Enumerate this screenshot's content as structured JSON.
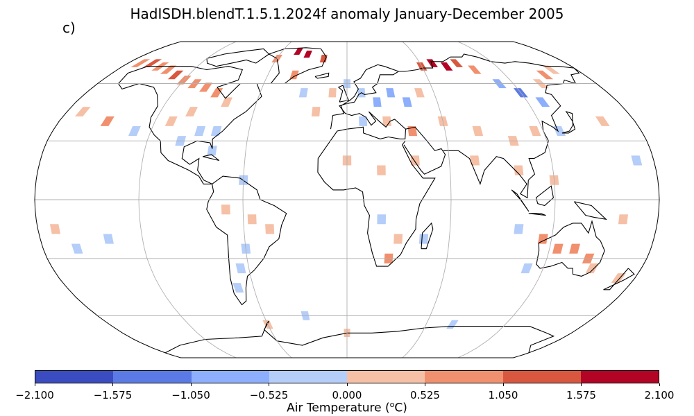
{
  "title": "HadISDH.blendT.1.5.1.2024f anomaly January-December 2005",
  "panel_label": "c)",
  "colorbar": {
    "label_prefix": "Air Temperature (",
    "label_sup": "o",
    "label_suffix": "C)",
    "ticks": [
      "−2.100",
      "−1.575",
      "−1.050",
      "−0.525",
      "0.000",
      "0.525",
      "1.050",
      "1.575",
      "2.100"
    ],
    "tick_values": [
      -2.1,
      -1.575,
      -1.05,
      -0.525,
      0.0,
      0.525,
      1.05,
      1.575,
      2.1
    ],
    "colors": [
      "#3b4cc0",
      "#5b7ae5",
      "#8caefc",
      "#b4cdf9",
      "#f5c0a6",
      "#f1906e",
      "#d9573f",
      "#b40426"
    ]
  },
  "map": {
    "projection": "Robinson",
    "gridlines": true,
    "anomaly_cells": [
      {
        "lon": -170,
        "lat": 72,
        "v": 0.8
      },
      {
        "lon": -160,
        "lat": 72,
        "v": 1.2
      },
      {
        "lon": -150,
        "lat": 70,
        "v": 0.6
      },
      {
        "lon": -140,
        "lat": 68,
        "v": 0.9
      },
      {
        "lon": -130,
        "lat": 65,
        "v": 1.1
      },
      {
        "lon": -120,
        "lat": 62,
        "v": 0.7
      },
      {
        "lon": -110,
        "lat": 60,
        "v": 1.0
      },
      {
        "lon": -100,
        "lat": 58,
        "v": 0.6
      },
      {
        "lon": -90,
        "lat": 55,
        "v": 0.8
      },
      {
        "lon": -80,
        "lat": 50,
        "v": 0.4
      },
      {
        "lon": -100,
        "lat": 45,
        "v": 0.5
      },
      {
        "lon": -110,
        "lat": 40,
        "v": 0.3
      },
      {
        "lon": -90,
        "lat": 35,
        "v": -0.3
      },
      {
        "lon": -80,
        "lat": 35,
        "v": -0.4
      },
      {
        "lon": -100,
        "lat": 30,
        "v": -0.2
      },
      {
        "lon": -80,
        "lat": 25,
        "v": -0.3
      },
      {
        "lon": -60,
        "lat": 75,
        "v": 0.9
      },
      {
        "lon": -45,
        "lat": 80,
        "v": 1.8
      },
      {
        "lon": -35,
        "lat": 78,
        "v": 2.0
      },
      {
        "lon": -20,
        "lat": 75,
        "v": 1.3
      },
      {
        "lon": -40,
        "lat": 65,
        "v": 0.7
      },
      {
        "lon": -30,
        "lat": 55,
        "v": -0.2
      },
      {
        "lon": -20,
        "lat": 45,
        "v": 0.3
      },
      {
        "lon": -10,
        "lat": 55,
        "v": 0.4
      },
      {
        "lon": 0,
        "lat": 60,
        "v": -0.3
      },
      {
        "lon": 10,
        "lat": 55,
        "v": -0.5
      },
      {
        "lon": 20,
        "lat": 50,
        "v": -0.7
      },
      {
        "lon": 30,
        "lat": 55,
        "v": -0.9
      },
      {
        "lon": 40,
        "lat": 50,
        "v": -0.6
      },
      {
        "lon": 50,
        "lat": 55,
        "v": 0.4
      },
      {
        "lon": 60,
        "lat": 70,
        "v": 1.4
      },
      {
        "lon": 70,
        "lat": 72,
        "v": 1.9
      },
      {
        "lon": 80,
        "lat": 70,
        "v": 1.7
      },
      {
        "lon": 90,
        "lat": 72,
        "v": 1.3
      },
      {
        "lon": 100,
        "lat": 68,
        "v": 0.9
      },
      {
        "lon": 110,
        "lat": 60,
        "v": -0.6
      },
      {
        "lon": 120,
        "lat": 55,
        "v": -1.1
      },
      {
        "lon": 130,
        "lat": 50,
        "v": -0.8
      },
      {
        "lon": 140,
        "lat": 60,
        "v": 0.5
      },
      {
        "lon": 150,
        "lat": 65,
        "v": 0.6
      },
      {
        "lon": 160,
        "lat": 68,
        "v": 0.4
      },
      {
        "lon": 10,
        "lat": 40,
        "v": -0.4
      },
      {
        "lon": 25,
        "lat": 40,
        "v": 0.4
      },
      {
        "lon": 40,
        "lat": 35,
        "v": 0.6
      },
      {
        "lon": 60,
        "lat": 40,
        "v": 0.3
      },
      {
        "lon": 80,
        "lat": 35,
        "v": 0.5
      },
      {
        "lon": 100,
        "lat": 30,
        "v": 0.5
      },
      {
        "lon": 115,
        "lat": 35,
        "v": 0.3
      },
      {
        "lon": 130,
        "lat": 35,
        "v": -0.3
      },
      {
        "lon": 0,
        "lat": 20,
        "v": 0.4
      },
      {
        "lon": 20,
        "lat": 15,
        "v": 0.3
      },
      {
        "lon": 40,
        "lat": 20,
        "v": 0.5
      },
      {
        "lon": 75,
        "lat": 20,
        "v": 0.4
      },
      {
        "lon": 100,
        "lat": 15,
        "v": 0.5
      },
      {
        "lon": 120,
        "lat": 10,
        "v": 0.3
      },
      {
        "lon": -60,
        "lat": 10,
        "v": -0.3
      },
      {
        "lon": -70,
        "lat": -5,
        "v": 0.3
      },
      {
        "lon": -55,
        "lat": -10,
        "v": 0.4
      },
      {
        "lon": -45,
        "lat": -15,
        "v": 0.3
      },
      {
        "lon": -60,
        "lat": -25,
        "v": -0.4
      },
      {
        "lon": -65,
        "lat": -35,
        "v": -0.3
      },
      {
        "lon": -70,
        "lat": -45,
        "v": -0.4
      },
      {
        "lon": 20,
        "lat": -10,
        "v": -0.2
      },
      {
        "lon": 30,
        "lat": -20,
        "v": 0.4
      },
      {
        "lon": 25,
        "lat": -30,
        "v": 0.6
      },
      {
        "lon": 45,
        "lat": -20,
        "v": -0.3
      },
      {
        "lon": 115,
        "lat": -20,
        "v": 0.7
      },
      {
        "lon": 125,
        "lat": -25,
        "v": 0.9
      },
      {
        "lon": 135,
        "lat": -25,
        "v": 0.8
      },
      {
        "lon": 145,
        "lat": -30,
        "v": 0.6
      },
      {
        "lon": 150,
        "lat": -35,
        "v": 0.5
      },
      {
        "lon": 170,
        "lat": -40,
        "v": 0.4
      },
      {
        "lon": 110,
        "lat": -35,
        "v": -0.3
      },
      {
        "lon": 100,
        "lat": -15,
        "v": -0.4
      },
      {
        "lon": -170,
        "lat": -15,
        "v": 0.3
      },
      {
        "lon": -160,
        "lat": -25,
        "v": -0.5
      },
      {
        "lon": -140,
        "lat": -20,
        "v": -0.3
      },
      {
        "lon": 160,
        "lat": -10,
        "v": 0.3
      },
      {
        "lon": 170,
        "lat": 20,
        "v": -0.3
      },
      {
        "lon": -170,
        "lat": 45,
        "v": 0.5
      },
      {
        "lon": -150,
        "lat": 40,
        "v": 0.6
      },
      {
        "lon": -130,
        "lat": 35,
        "v": -0.2
      },
      {
        "lon": 160,
        "lat": 40,
        "v": 0.4
      },
      {
        "lon": -30,
        "lat": -60,
        "v": -0.4
      },
      {
        "lon": 0,
        "lat": -70,
        "v": 0.3
      },
      {
        "lon": 80,
        "lat": -65,
        "v": -0.3
      },
      {
        "lon": -60,
        "lat": -65,
        "v": 0.5
      }
    ]
  }
}
